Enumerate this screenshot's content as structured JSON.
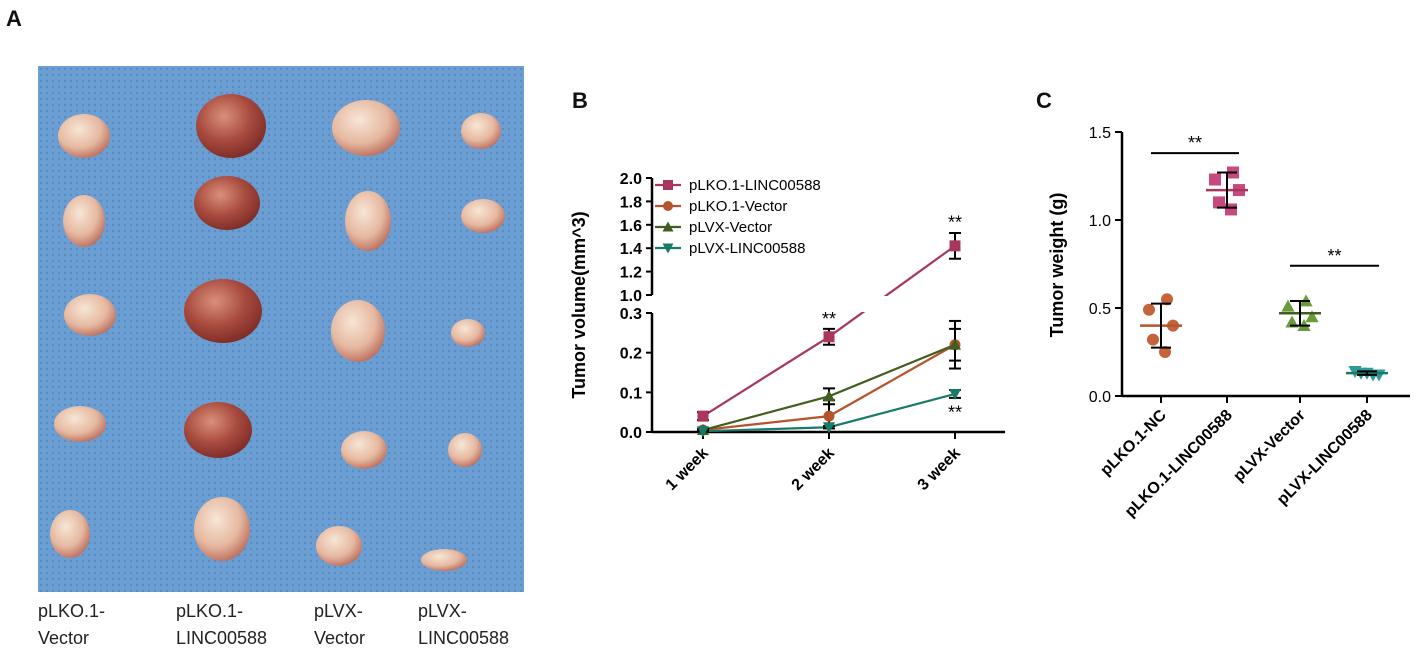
{
  "panels": {
    "a": {
      "letter": "A",
      "group_labels": [
        {
          "line1": "pLKO.1-",
          "line2": "Vector"
        },
        {
          "line1": "pLKO.1-",
          "line2": "LINC00588"
        },
        {
          "line1": "pLVX-",
          "line2": "Vector"
        },
        {
          "line1": "pLVX-",
          "line2": "LINC00588"
        }
      ]
    },
    "b": {
      "letter": "B"
    },
    "c": {
      "letter": "C"
    }
  },
  "colors": {
    "pLKO1_LINC": "#a8365e",
    "pLKO1_Vector": "#b5532c",
    "pLVX_Vector": "#405e1e",
    "pLVX_LINC": "#1a7a6a",
    "pLKO1_LINC_point": "#c8497d",
    "pLKO1_NC_point": "#c4643c",
    "pLVX_Vector_point": "#6a9a3a",
    "pLVX_LINC_point": "#2e9a9a",
    "photo_background": "#6a9ed4",
    "tumor": "#cf8a78"
  },
  "chart_data": [
    {
      "type": "line",
      "panel": "B",
      "ylabel": "Tumor volume(mm^3)",
      "xlabel": "",
      "categories": [
        "1 week",
        "2 week",
        "3 week"
      ],
      "y_axis_break": true,
      "ylim_lower": [
        0,
        0.3
      ],
      "ylim_upper": [
        1.0,
        2.0
      ],
      "yticks_lower": [
        "0.0",
        "0.1",
        "0.2",
        "0.3"
      ],
      "yticks_upper": [
        "1.0",
        "1.2",
        "1.4",
        "1.6",
        "1.8",
        "2.0"
      ],
      "legend_position": "top-left",
      "series": [
        {
          "name": "pLKO.1-LINC00588",
          "marker": "square",
          "values": [
            0.04,
            0.24,
            1.42
          ],
          "errors": [
            0.01,
            0.02,
            0.11
          ]
        },
        {
          "name": "pLKO.1-Vector",
          "marker": "circle",
          "values": [
            0.005,
            0.04,
            0.22
          ],
          "errors": [
            0.003,
            0.04,
            0.04
          ]
        },
        {
          "name": "pLVX-Vector",
          "marker": "triangle-up",
          "values": [
            0.005,
            0.09,
            0.22
          ],
          "errors": [
            0.003,
            0.02,
            0.06
          ]
        },
        {
          "name": "pLVX-LINC00588",
          "marker": "triangle-down",
          "values": [
            0.002,
            0.012,
            0.096
          ],
          "errors": [
            0.001,
            0.003,
            0.01
          ]
        }
      ],
      "annotations": [
        {
          "text": "**",
          "category": "2 week",
          "y": 0.265
        },
        {
          "text": "**",
          "category": "3 week",
          "y": 1.55
        },
        {
          "text": "**",
          "category": "3 week",
          "y": 0.09
        }
      ]
    },
    {
      "type": "scatter",
      "panel": "C",
      "ylabel": "Tumor weight (g)",
      "xlabel": "",
      "ylim": [
        0,
        1.5
      ],
      "yticks": [
        "0.0",
        "0.5",
        "1.0",
        "1.5"
      ],
      "categories": [
        "pLKO.1-NC",
        "pLKO.1-LINC00588",
        "pLVX-Vector",
        "pLVX-LINC00588"
      ],
      "groups": [
        {
          "name": "pLKO.1-NC",
          "marker": "circle",
          "points": [
            0.55,
            0.49,
            0.4,
            0.32,
            0.25
          ],
          "mean": 0.4,
          "sd": 0.125
        },
        {
          "name": "pLKO.1-LINC00588",
          "marker": "square",
          "points": [
            1.27,
            1.23,
            1.17,
            1.1,
            1.06
          ],
          "mean": 1.17,
          "sd": 0.1
        },
        {
          "name": "pLVX-Vector",
          "marker": "triangle-up",
          "points": [
            0.54,
            0.51,
            0.45,
            0.42,
            0.4
          ],
          "mean": 0.47,
          "sd": 0.07
        },
        {
          "name": "pLVX-LINC00588",
          "marker": "triangle-down",
          "points": [
            0.14,
            0.13,
            0.13,
            0.12,
            0.12
          ],
          "mean": 0.13,
          "sd": 0.01
        }
      ],
      "significance": [
        {
          "text": "**",
          "between": [
            "pLKO.1-NC",
            "pLKO.1-LINC00588"
          ],
          "y": 1.38
        },
        {
          "text": "**",
          "between": [
            "pLVX-Vector",
            "pLVX-LINC00588"
          ],
          "y": 0.74
        }
      ]
    }
  ]
}
